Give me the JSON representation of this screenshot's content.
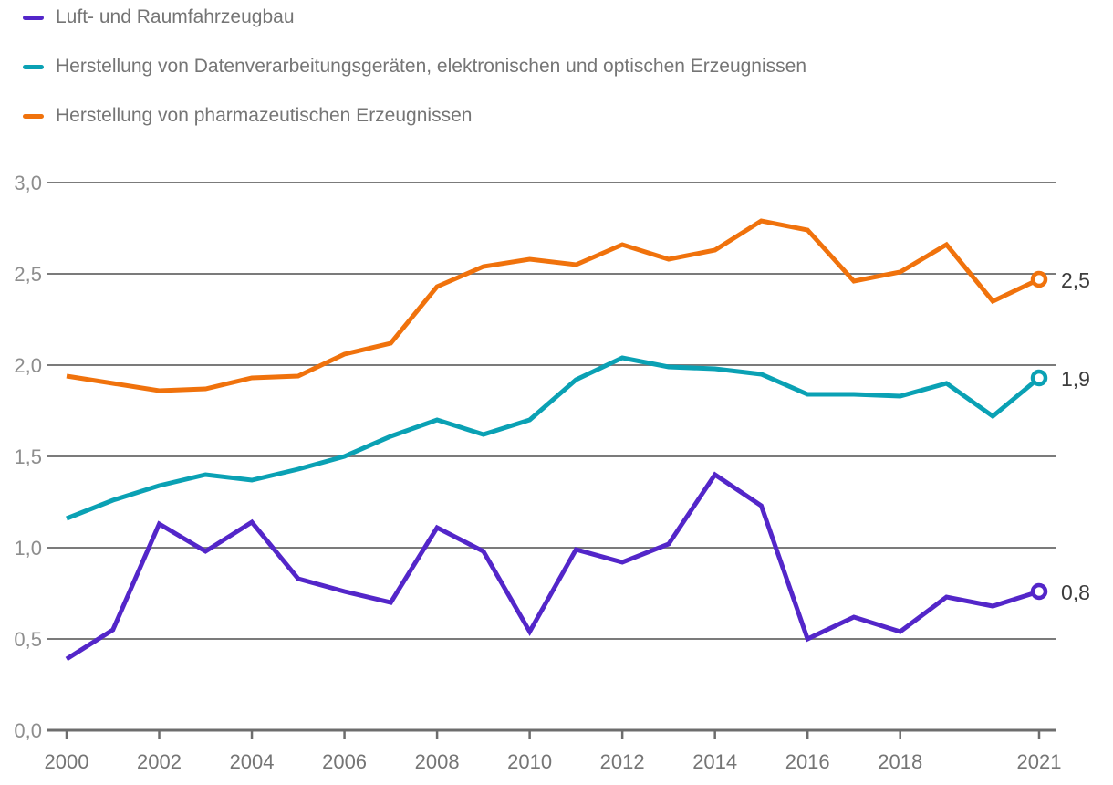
{
  "chart_data": {
    "type": "line",
    "title": "",
    "xlabel": "",
    "ylabel": "",
    "grid": "horizontal-only",
    "legend_position": "top-left",
    "ylim": [
      0.0,
      3.0
    ],
    "x": [
      2000,
      2001,
      2002,
      2003,
      2004,
      2005,
      2006,
      2007,
      2008,
      2009,
      2010,
      2011,
      2012,
      2013,
      2014,
      2015,
      2016,
      2017,
      2018,
      2019,
      2020,
      2021
    ],
    "x_ticks": [
      {
        "year": 2000,
        "label": "2000"
      },
      {
        "year": 2002,
        "label": "2002"
      },
      {
        "year": 2004,
        "label": "2004"
      },
      {
        "year": 2006,
        "label": "2006"
      },
      {
        "year": 2008,
        "label": "2008"
      },
      {
        "year": 2010,
        "label": "2010"
      },
      {
        "year": 2012,
        "label": "2012"
      },
      {
        "year": 2014,
        "label": "2014"
      },
      {
        "year": 2016,
        "label": "2016"
      },
      {
        "year": 2018,
        "label": "2018"
      },
      {
        "year": 2021,
        "label": "2021"
      }
    ],
    "y_ticks": [
      {
        "value": 0.0,
        "label": "0,0"
      },
      {
        "value": 0.5,
        "label": "0,5"
      },
      {
        "value": 1.0,
        "label": "1,0"
      },
      {
        "value": 1.5,
        "label": "1,5"
      },
      {
        "value": 2.0,
        "label": "2,0"
      },
      {
        "value": 2.5,
        "label": "2,5"
      },
      {
        "value": 3.0,
        "label": "3,0"
      }
    ],
    "series": [
      {
        "name": "Luft- und Raumfahrzeugbau",
        "color": "#5326c9",
        "end_label": "0,8",
        "values": [
          0.39,
          0.55,
          1.13,
          0.98,
          1.14,
          0.83,
          0.76,
          0.7,
          1.11,
          0.98,
          0.54,
          0.99,
          0.92,
          1.02,
          1.4,
          1.23,
          0.5,
          0.62,
          0.54,
          0.73,
          0.68,
          0.76
        ]
      },
      {
        "name": "Herstellung von Datenverarbeitungsgeräten, elektronischen und optischen Erzeugnissen",
        "color": "#0aa1b4",
        "end_label": "1,9",
        "values": [
          1.16,
          1.26,
          1.34,
          1.4,
          1.37,
          1.43,
          1.5,
          1.61,
          1.7,
          1.62,
          1.7,
          1.92,
          2.04,
          1.99,
          1.98,
          1.95,
          1.84,
          1.84,
          1.83,
          1.9,
          1.72,
          1.93
        ]
      },
      {
        "name": "Herstellung von pharmazeutischen Erzeugnissen",
        "color": "#f0720c",
        "end_label": "2,5",
        "values": [
          1.94,
          1.9,
          1.86,
          1.87,
          1.93,
          1.94,
          2.06,
          2.12,
          2.43,
          2.54,
          2.58,
          2.55,
          2.66,
          2.58,
          2.63,
          2.79,
          2.74,
          2.46,
          2.51,
          2.66,
          2.35,
          2.47
        ]
      }
    ]
  }
}
